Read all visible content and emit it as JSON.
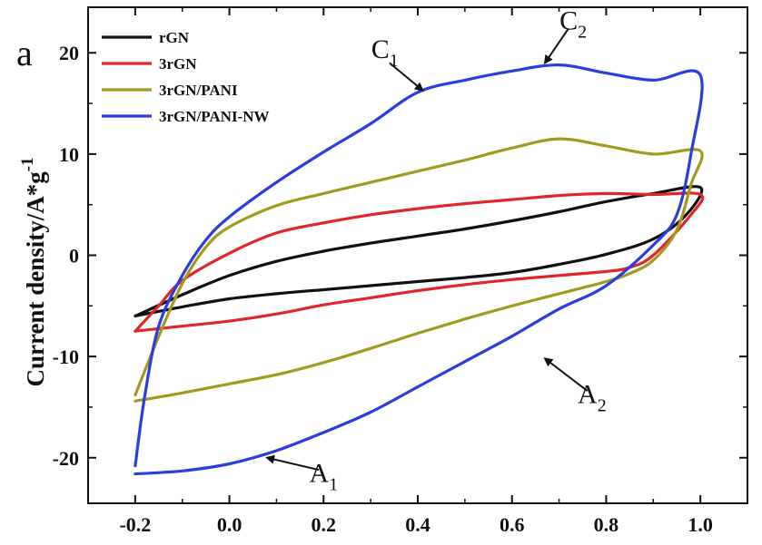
{
  "chart_data": {
    "type": "line",
    "panel_label": "a",
    "xlabel": "",
    "ylabel": "Current density/A*g",
    "ylabel_sup": "-1",
    "xlim": [
      -0.3,
      1.1
    ],
    "ylim": [
      -24.5,
      24.5
    ],
    "xticks": [
      -0.2,
      0.0,
      0.2,
      0.4,
      0.6,
      0.8,
      1.0
    ],
    "xtick_labels": [
      "-0.2",
      "0.0",
      "0.2",
      "0.4",
      "0.6",
      "0.8",
      "1.0"
    ],
    "yticks": [
      -20,
      -10,
      0,
      10,
      20
    ],
    "ytick_labels": [
      "-20",
      "-10",
      "0",
      "10",
      "20"
    ],
    "legend_position": "top-left",
    "series": [
      {
        "name": "rGN",
        "color": "#111111",
        "points": [
          [
            -0.2,
            -6.0
          ],
          [
            -0.1,
            -3.9
          ],
          [
            0.0,
            -2.0
          ],
          [
            0.1,
            -0.6
          ],
          [
            0.2,
            0.4
          ],
          [
            0.3,
            1.2
          ],
          [
            0.4,
            1.9
          ],
          [
            0.5,
            2.6
          ],
          [
            0.6,
            3.4
          ],
          [
            0.7,
            4.3
          ],
          [
            0.8,
            5.3
          ],
          [
            0.9,
            6.1
          ],
          [
            1.0,
            6.7
          ],
          [
            0.97,
            4.0
          ],
          [
            0.9,
            1.6
          ],
          [
            0.8,
            0.1
          ],
          [
            0.7,
            -0.9
          ],
          [
            0.6,
            -1.7
          ],
          [
            0.5,
            -2.2
          ],
          [
            0.4,
            -2.6
          ],
          [
            0.3,
            -3.0
          ],
          [
            0.2,
            -3.4
          ],
          [
            0.1,
            -3.8
          ],
          [
            0.0,
            -4.3
          ],
          [
            -0.1,
            -5.1
          ],
          [
            -0.2,
            -6.0
          ]
        ]
      },
      {
        "name": "3rGN",
        "color": "#e0262a",
        "points": [
          [
            -0.2,
            -7.5
          ],
          [
            -0.15,
            -5.0
          ],
          [
            -0.1,
            -2.5
          ],
          [
            0.0,
            0.2
          ],
          [
            0.1,
            2.2
          ],
          [
            0.2,
            3.2
          ],
          [
            0.3,
            4.0
          ],
          [
            0.4,
            4.6
          ],
          [
            0.5,
            5.1
          ],
          [
            0.6,
            5.5
          ],
          [
            0.7,
            5.9
          ],
          [
            0.8,
            6.1
          ],
          [
            0.9,
            6.0
          ],
          [
            1.0,
            6.0
          ],
          [
            0.98,
            4.0
          ],
          [
            0.9,
            0.0
          ],
          [
            0.85,
            -1.2
          ],
          [
            0.8,
            -1.6
          ],
          [
            0.7,
            -2.0
          ],
          [
            0.6,
            -2.4
          ],
          [
            0.5,
            -2.9
          ],
          [
            0.4,
            -3.5
          ],
          [
            0.3,
            -4.2
          ],
          [
            0.2,
            -4.9
          ],
          [
            0.1,
            -5.8
          ],
          [
            0.0,
            -6.5
          ],
          [
            -0.1,
            -7.0
          ],
          [
            -0.2,
            -7.5
          ]
        ]
      },
      {
        "name": "3rGN/PANI",
        "color": "#a19a1c",
        "points": [
          [
            -0.2,
            -13.8
          ],
          [
            -0.15,
            -8.0
          ],
          [
            -0.1,
            -2.8
          ],
          [
            -0.05,
            0.8
          ],
          [
            0.0,
            2.8
          ],
          [
            0.1,
            4.9
          ],
          [
            0.2,
            6.1
          ],
          [
            0.3,
            7.2
          ],
          [
            0.4,
            8.3
          ],
          [
            0.5,
            9.4
          ],
          [
            0.6,
            10.6
          ],
          [
            0.7,
            11.5
          ],
          [
            0.8,
            10.8
          ],
          [
            0.9,
            10.0
          ],
          [
            1.0,
            10.3
          ],
          [
            0.98,
            7.0
          ],
          [
            0.95,
            2.5
          ],
          [
            0.9,
            -0.5
          ],
          [
            0.85,
            -1.8
          ],
          [
            0.8,
            -2.6
          ],
          [
            0.7,
            -3.8
          ],
          [
            0.6,
            -5.0
          ],
          [
            0.5,
            -6.3
          ],
          [
            0.4,
            -7.7
          ],
          [
            0.3,
            -9.2
          ],
          [
            0.2,
            -10.6
          ],
          [
            0.1,
            -11.8
          ],
          [
            0.0,
            -12.7
          ],
          [
            -0.1,
            -13.6
          ],
          [
            -0.2,
            -14.4
          ]
        ]
      },
      {
        "name": "3rGN/PANI-NW",
        "color": "#2b3de0",
        "points": [
          [
            -0.2,
            -20.8
          ],
          [
            -0.18,
            -14.0
          ],
          [
            -0.15,
            -7.0
          ],
          [
            -0.1,
            -2.0
          ],
          [
            -0.05,
            1.5
          ],
          [
            0.0,
            3.8
          ],
          [
            0.1,
            7.2
          ],
          [
            0.2,
            10.2
          ],
          [
            0.3,
            13.0
          ],
          [
            0.4,
            16.1
          ],
          [
            0.5,
            17.3
          ],
          [
            0.6,
            18.2
          ],
          [
            0.7,
            18.8
          ],
          [
            0.8,
            18.0
          ],
          [
            0.9,
            17.3
          ],
          [
            1.0,
            17.8
          ],
          [
            0.98,
            10.0
          ],
          [
            0.95,
            4.0
          ],
          [
            0.9,
            1.0
          ],
          [
            0.8,
            -3.0
          ],
          [
            0.7,
            -5.3
          ],
          [
            0.6,
            -8.0
          ],
          [
            0.5,
            -10.5
          ],
          [
            0.4,
            -13.0
          ],
          [
            0.3,
            -15.5
          ],
          [
            0.2,
            -17.5
          ],
          [
            0.1,
            -19.3
          ],
          [
            0.0,
            -20.6
          ],
          [
            -0.1,
            -21.3
          ],
          [
            -0.2,
            -21.6
          ]
        ]
      }
    ],
    "annotations": [
      {
        "label": "C",
        "sub": "1",
        "text_at": [
          0.33,
          19.5
        ],
        "arrow_from": [
          0.34,
          19.0
        ],
        "arrow_to": [
          0.41,
          16.3
        ]
      },
      {
        "label": "C",
        "sub": "2",
        "text_at": [
          0.73,
          22.3
        ],
        "arrow_from": [
          0.72,
          22.4
        ],
        "arrow_to": [
          0.67,
          19.0
        ]
      },
      {
        "label": "A",
        "sub": "1",
        "text_at": [
          0.2,
          -22.4
        ],
        "arrow_from": [
          0.19,
          -21.2
        ],
        "arrow_to": [
          0.08,
          -20.0
        ]
      },
      {
        "label": "A",
        "sub": "2",
        "text_at": [
          0.77,
          -14.6
        ],
        "arrow_from": [
          0.76,
          -13.4
        ],
        "arrow_to": [
          0.67,
          -10.2
        ]
      }
    ]
  }
}
